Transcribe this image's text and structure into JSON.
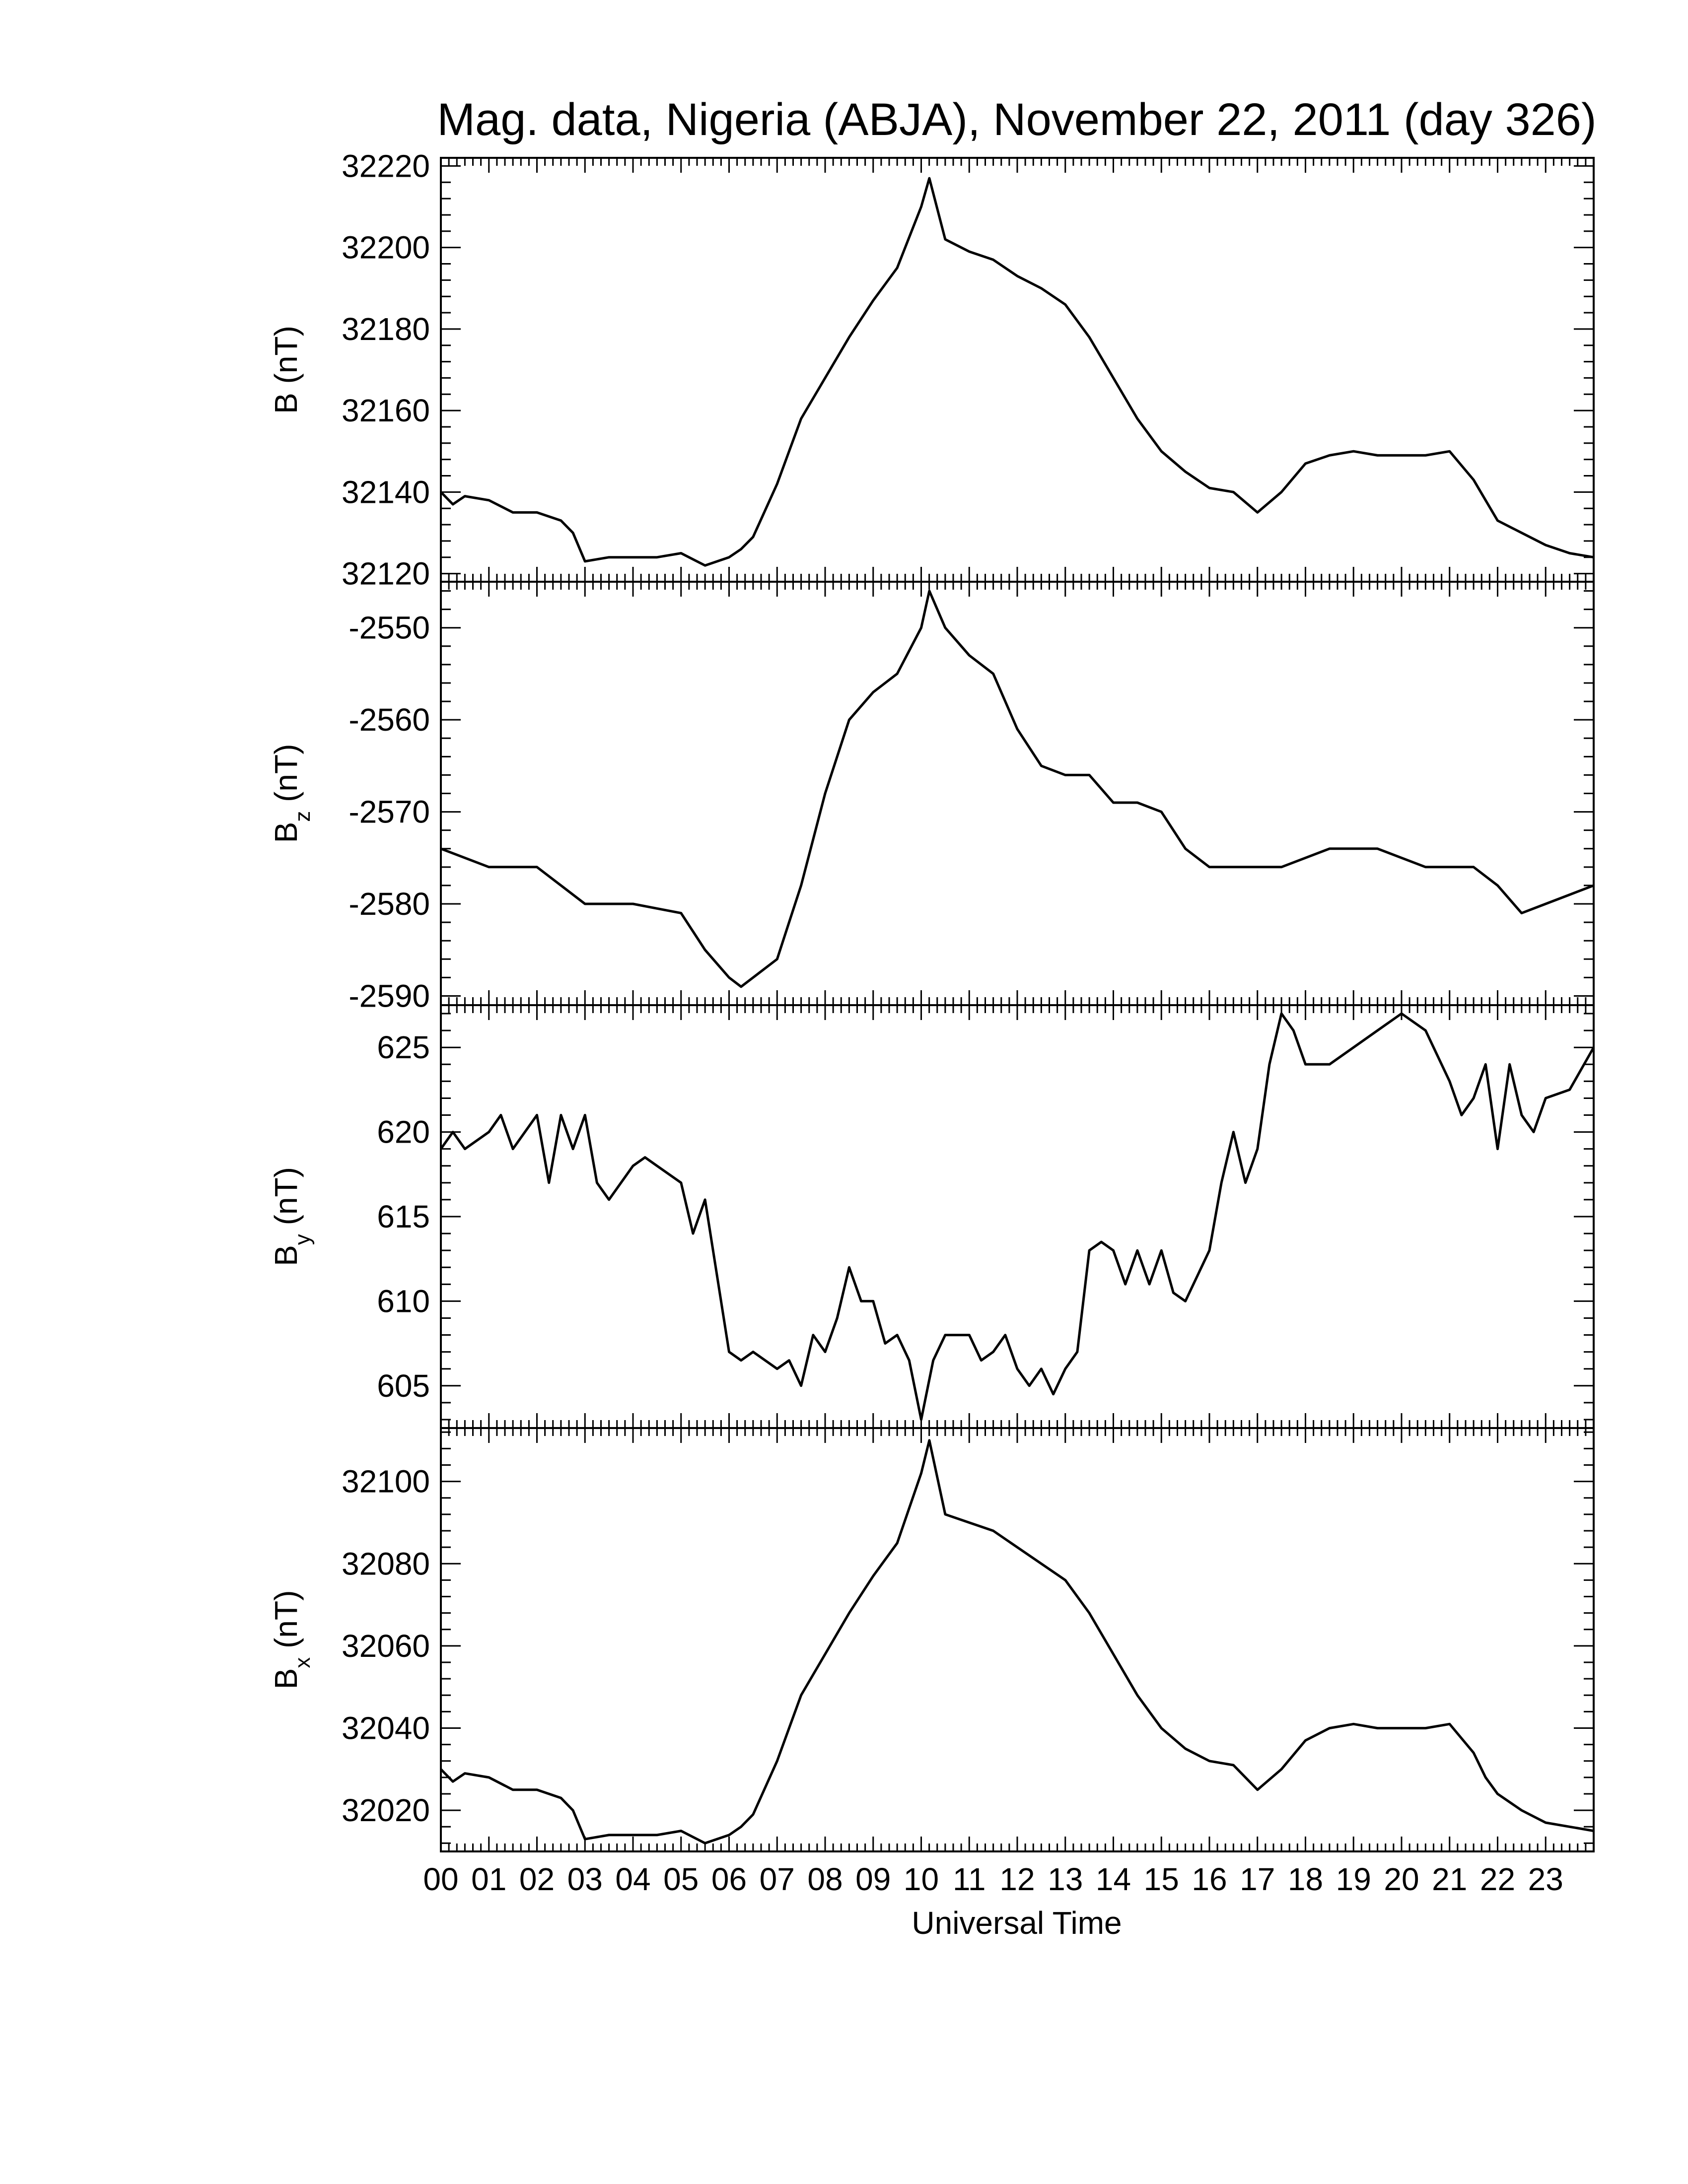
{
  "chart_data": {
    "type": "line",
    "title": "Mag. data, Nigeria (ABJA), November 22, 2011 (day 326)",
    "xlabel": "Universal Time",
    "x_unit": "hour",
    "xlim": [
      0,
      24
    ],
    "x_tick_labels": [
      "00",
      "01",
      "02",
      "03",
      "04",
      "05",
      "06",
      "07",
      "08",
      "09",
      "10",
      "11",
      "12",
      "13",
      "14",
      "15",
      "16",
      "17",
      "18",
      "19",
      "20",
      "21",
      "22",
      "23"
    ],
    "line_color": "#000000",
    "grid": false,
    "legend": "none",
    "panels": [
      {
        "id": "b-total",
        "ylabel_main": "B",
        "ylabel_sub": "",
        "ylabel_unit": "(nT)",
        "ylim": [
          32118,
          32222
        ],
        "yticks": [
          "32120",
          "32140",
          "32160",
          "32180",
          "32200",
          "32220"
        ],
        "ytick_values": [
          32120,
          32140,
          32160,
          32180,
          32200,
          32220
        ],
        "series": {
          "x": [
            0,
            0.25,
            0.5,
            1,
            1.5,
            2,
            2.5,
            2.75,
            3,
            3.5,
            4,
            4.5,
            5,
            5.5,
            6,
            6.25,
            6.5,
            7,
            7.25,
            7.5,
            8,
            8.5,
            9,
            9.5,
            10,
            10.17,
            10.5,
            11,
            11.5,
            12,
            12.5,
            13,
            13.5,
            14,
            14.5,
            15,
            15.5,
            16,
            16.5,
            17,
            17.5,
            18,
            18.5,
            19,
            19.5,
            20,
            20.5,
            21,
            21.5,
            21.75,
            22,
            22.5,
            23,
            23.5,
            24
          ],
          "y": [
            32140,
            32137,
            32139,
            32138,
            32135,
            32135,
            32133,
            32130,
            32123,
            32124,
            32124,
            32124,
            32125,
            32122,
            32124,
            32126,
            32129,
            32142,
            32150,
            32158,
            32168,
            32178,
            32187,
            32195,
            32210,
            32217,
            32202,
            32199,
            32197,
            32193,
            32190,
            32186,
            32178,
            32168,
            32158,
            32150,
            32145,
            32141,
            32140,
            32135,
            32140,
            32147,
            32149,
            32150,
            32149,
            32149,
            32149,
            32150,
            32143,
            32138,
            32133,
            32130,
            32127,
            32125,
            32124
          ]
        }
      },
      {
        "id": "b-z",
        "ylabel_main": "B",
        "ylabel_sub": "z",
        "ylabel_unit": "(nT)",
        "ylim": [
          -2591,
          -2545
        ],
        "yticks": [
          "-2590",
          "-2580",
          "-2570",
          "-2560",
          "-2550"
        ],
        "ytick_values": [
          -2590,
          -2580,
          -2570,
          -2560,
          -2550
        ],
        "series": {
          "x": [
            0,
            0.5,
            1,
            1.5,
            2,
            2.5,
            3,
            3.5,
            4,
            4.5,
            5,
            5.5,
            6,
            6.25,
            6.5,
            7,
            7.25,
            7.5,
            8,
            8.5,
            9,
            9.5,
            10,
            10.17,
            10.5,
            11,
            11.5,
            12,
            12.5,
            13,
            13.5,
            14,
            14.5,
            15,
            15.5,
            16,
            16.5,
            17,
            17.5,
            18,
            18.5,
            19,
            19.5,
            20,
            20.5,
            21,
            21.5,
            22,
            22.5,
            23,
            23.5,
            24
          ],
          "y": [
            -2574,
            -2575,
            -2576,
            -2576,
            -2576,
            -2578,
            -2580,
            -2580,
            -2580,
            -2580.5,
            -2581,
            -2585,
            -2588,
            -2589,
            -2588,
            -2586,
            -2582,
            -2578,
            -2568,
            -2560,
            -2557,
            -2555,
            -2550,
            -2546,
            -2550,
            -2553,
            -2555,
            -2561,
            -2565,
            -2566,
            -2566,
            -2569,
            -2569,
            -2570,
            -2574,
            -2576,
            -2576,
            -2576,
            -2576,
            -2575,
            -2574,
            -2574,
            -2574,
            -2575,
            -2576,
            -2576,
            -2576,
            -2578,
            -2581,
            -2580,
            -2579,
            -2578
          ]
        }
      },
      {
        "id": "b-y",
        "ylabel_main": "B",
        "ylabel_sub": "y",
        "ylabel_unit": "(nT)",
        "ylim": [
          602.5,
          627.5
        ],
        "yticks": [
          "605",
          "610",
          "615",
          "620",
          "625"
        ],
        "ytick_values": [
          605,
          610,
          615,
          620,
          625
        ],
        "series": {
          "x": [
            0,
            0.25,
            0.5,
            1,
            1.25,
            1.5,
            2,
            2.25,
            2.5,
            2.75,
            3,
            3.25,
            3.5,
            4,
            4.25,
            4.5,
            5,
            5.25,
            5.5,
            6,
            6.25,
            6.5,
            7,
            7.25,
            7.5,
            7.75,
            8,
            8.25,
            8.5,
            8.75,
            9,
            9.25,
            9.5,
            9.75,
            10,
            10.25,
            10.5,
            10.75,
            11,
            11.25,
            11.5,
            11.75,
            12,
            12.25,
            12.5,
            12.75,
            13,
            13.25,
            13.5,
            13.75,
            14,
            14.25,
            14.5,
            14.75,
            15,
            15.25,
            15.5,
            16,
            16.25,
            16.5,
            16.75,
            17,
            17.25,
            17.5,
            17.75,
            18,
            18.5,
            19,
            19.5,
            20,
            20.5,
            21,
            21.25,
            21.5,
            21.75,
            22,
            22.25,
            22.5,
            22.75,
            23,
            23.5,
            24
          ],
          "y": [
            619,
            620,
            619,
            620,
            621,
            619,
            621,
            617,
            621,
            619,
            621,
            617,
            616,
            618,
            618.5,
            618,
            617,
            614,
            616,
            607,
            606.5,
            607,
            606,
            606.5,
            605,
            608,
            607,
            609,
            612,
            610,
            610,
            607.5,
            608,
            606.5,
            603,
            606.5,
            608,
            608,
            608,
            606.5,
            607,
            608,
            606,
            605,
            606,
            604.5,
            606,
            607,
            613,
            613.5,
            613,
            611,
            613,
            611,
            613,
            610.5,
            610,
            613,
            617,
            620,
            617,
            619,
            624,
            627,
            626,
            624,
            624,
            625,
            626,
            627,
            626,
            623,
            621,
            622,
            624,
            619,
            624,
            621,
            620,
            622,
            622.5,
            625
          ]
        }
      },
      {
        "id": "b-x",
        "ylabel_main": "B",
        "ylabel_sub": "x",
        "ylabel_unit": "(nT)",
        "ylim": [
          32010,
          32113
        ],
        "yticks": [
          "32020",
          "32040",
          "32060",
          "32080",
          "32100"
        ],
        "ytick_values": [
          32020,
          32040,
          32060,
          32080,
          32100
        ],
        "series": {
          "x": [
            0,
            0.25,
            0.5,
            1,
            1.5,
            2,
            2.5,
            2.75,
            3,
            3.5,
            4,
            4.5,
            5,
            5.5,
            6,
            6.25,
            6.5,
            7,
            7.25,
            7.5,
            8,
            8.5,
            9,
            9.5,
            10,
            10.17,
            10.5,
            11,
            11.5,
            12,
            12.5,
            13,
            13.5,
            14,
            14.5,
            15,
            15.5,
            16,
            16.5,
            17,
            17.5,
            18,
            18.5,
            19,
            19.5,
            20,
            20.5,
            21,
            21.5,
            21.75,
            22,
            22.5,
            23,
            23.5,
            24
          ],
          "y": [
            32030,
            32027,
            32029,
            32028,
            32025,
            32025,
            32023,
            32020,
            32013,
            32014,
            32014,
            32014,
            32015,
            32012,
            32014,
            32016,
            32019,
            32032,
            32040,
            32048,
            32058,
            32068,
            32077,
            32085,
            32102,
            32110,
            32092,
            32090,
            32088,
            32084,
            32080,
            32076,
            32068,
            32058,
            32048,
            32040,
            32035,
            32032,
            32031,
            32025,
            32030,
            32037,
            32040,
            32041,
            32040,
            32040,
            32040,
            32041,
            32034,
            32028,
            32024,
            32020,
            32017,
            32016,
            32015
          ]
        }
      }
    ]
  }
}
